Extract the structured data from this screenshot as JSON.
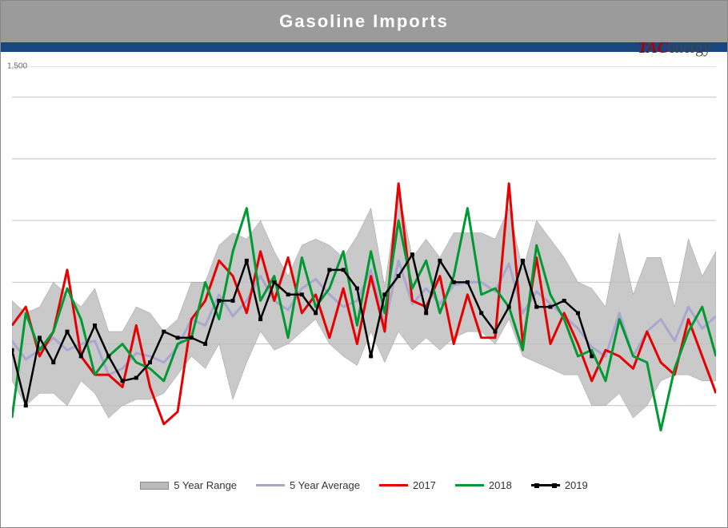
{
  "chart": {
    "title": "Gasoline Imports",
    "logo_tac": "TAC",
    "logo_energy": "energy",
    "type": "line_with_range_band",
    "ylim": [
      200,
      1500
    ],
    "xlim": [
      1,
      52
    ],
    "gridlines_y": [
      400,
      600,
      800,
      1000,
      1200,
      1400,
      1500
    ],
    "ytick_label_top": "1,500",
    "background_color": "#ffffff",
    "grid_color": "#bfbfbf",
    "header_bg": "#9b9b9b",
    "strip_bg": "#1a4680",
    "range_band": {
      "color": "#bfbfbf",
      "opacity": 0.85,
      "upper": [
        740,
        700,
        720,
        800,
        760,
        720,
        780,
        640,
        640,
        720,
        700,
        640,
        680,
        800,
        800,
        920,
        960,
        940,
        1000,
        900,
        820,
        920,
        940,
        920,
        880,
        950,
        1040,
        784,
        1100,
        880,
        940,
        880,
        960,
        960,
        960,
        940,
        1040,
        840,
        1000,
        940,
        880,
        800,
        780,
        720,
        960,
        760,
        880,
        880,
        720,
        940,
        820,
        900
      ],
      "lower": [
        480,
        400,
        440,
        440,
        400,
        480,
        440,
        360,
        400,
        420,
        420,
        440,
        500,
        560,
        520,
        600,
        420,
        540,
        640,
        580,
        600,
        640,
        680,
        600,
        560,
        530,
        640,
        540,
        640,
        580,
        620,
        580,
        620,
        640,
        640,
        600,
        680,
        560,
        540,
        520,
        500,
        500,
        400,
        400,
        440,
        360,
        400,
        480,
        500,
        500,
        480,
        480
      ]
    },
    "series": [
      {
        "name": "5 Year Average",
        "color": "#a9a6cf",
        "line_width": 3,
        "marker": "none",
        "values": [
          610,
          550,
          580,
          620,
          580,
          600,
          610,
          500,
          520,
          570,
          560,
          540,
          590,
          680,
          660,
          760,
          690,
          740,
          820,
          740,
          710,
          780,
          810,
          760,
          720,
          740,
          840,
          660,
          870,
          730,
          780,
          730,
          790,
          800,
          800,
          770,
          860,
          700,
          770,
          730,
          690,
          650,
          590,
          560,
          700,
          560,
          640,
          680,
          610,
          720,
          650,
          690
        ]
      },
      {
        "name": "2017",
        "color": "#e60000",
        "line_width": 3,
        "marker": "none",
        "values": [
          660,
          720,
          560,
          640,
          840,
          560,
          500,
          500,
          460,
          660,
          460,
          340,
          380,
          680,
          740,
          870,
          820,
          700,
          900,
          740,
          880,
          700,
          760,
          620,
          780,
          600,
          820,
          640,
          1120,
          740,
          720,
          820,
          600,
          760,
          620,
          620,
          1120,
          600,
          880,
          600,
          700,
          600,
          480,
          580,
          560,
          520,
          640,
          540,
          500,
          680,
          560,
          440
        ]
      },
      {
        "name": "2018",
        "color": "#009933",
        "line_width": 3,
        "marker": "none",
        "values": [
          360,
          700,
          580,
          640,
          780,
          680,
          500,
          560,
          600,
          540,
          520,
          480,
          600,
          620,
          800,
          680,
          900,
          1040,
          740,
          820,
          620,
          880,
          720,
          780,
          900,
          660,
          900,
          700,
          1000,
          780,
          870,
          700,
          820,
          1040,
          760,
          780,
          720,
          580,
          920,
          760,
          680,
          560,
          580,
          480,
          680,
          560,
          540,
          320,
          520,
          640,
          720,
          560
        ]
      },
      {
        "name": "2019",
        "color": "#000000",
        "line_width": 2.5,
        "marker": "square",
        "marker_size": 5,
        "values": [
          580,
          400,
          620,
          540,
          640,
          560,
          660,
          560,
          480,
          490,
          540,
          640,
          620,
          620,
          600,
          740,
          740,
          870,
          680,
          800,
          760,
          760,
          700,
          840,
          840,
          780,
          560,
          760,
          820,
          890,
          700,
          870,
          800,
          800,
          700,
          640,
          720,
          870,
          720,
          720,
          740,
          700,
          560
        ]
      }
    ],
    "legend": [
      {
        "key": "range",
        "label": "5 Year Range"
      },
      {
        "key": "avg",
        "label": "5 Year Average"
      },
      {
        "key": "s17",
        "label": "2017"
      },
      {
        "key": "s18",
        "label": "2018"
      },
      {
        "key": "s19",
        "label": "2019"
      }
    ]
  }
}
